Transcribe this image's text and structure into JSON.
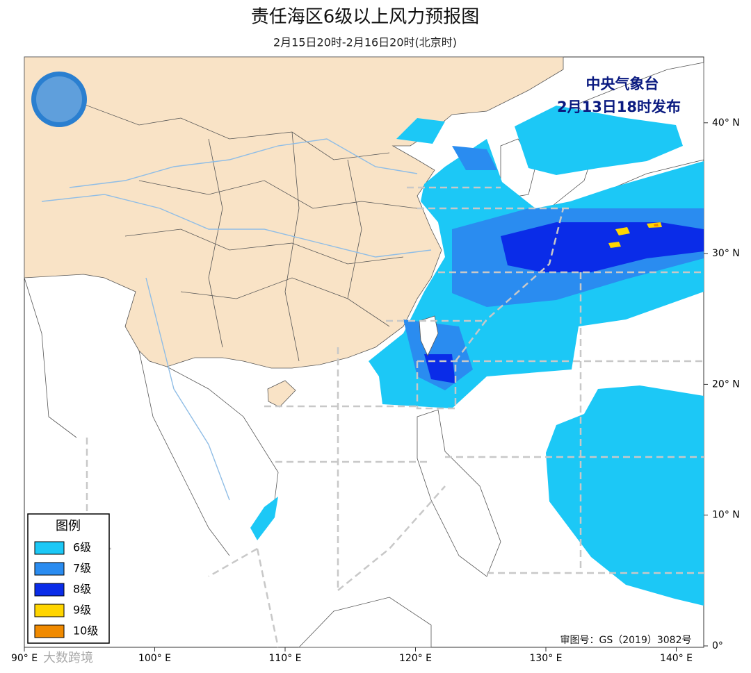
{
  "header": {
    "title": "责任海区6级以上风力预报图",
    "subtitle": "2月15日20时-2月16日20时(北京时)"
  },
  "issuer": {
    "name": "中央气象台",
    "time": "2月13日18时发布"
  },
  "legend": {
    "title": "图例",
    "items": [
      {
        "label": "6级",
        "color": "#1cc8f6"
      },
      {
        "label": "7级",
        "color": "#2a8cf0"
      },
      {
        "label": "8级",
        "color": "#0a2ce8"
      },
      {
        "label": "9级",
        "color": "#ffd500"
      },
      {
        "label": "10级",
        "color": "#f08a00"
      }
    ]
  },
  "axes": {
    "longitude_labels": [
      "90° E",
      "100° E",
      "110° E",
      "120° E",
      "130° E",
      "140° E"
    ],
    "latitude_labels": [
      "0°",
      "10° N",
      "20° N",
      "30° N",
      "40° N"
    ]
  },
  "footer": {
    "approval": "审图号：GS（2019）3082号",
    "watermark": "大数跨境"
  }
}
